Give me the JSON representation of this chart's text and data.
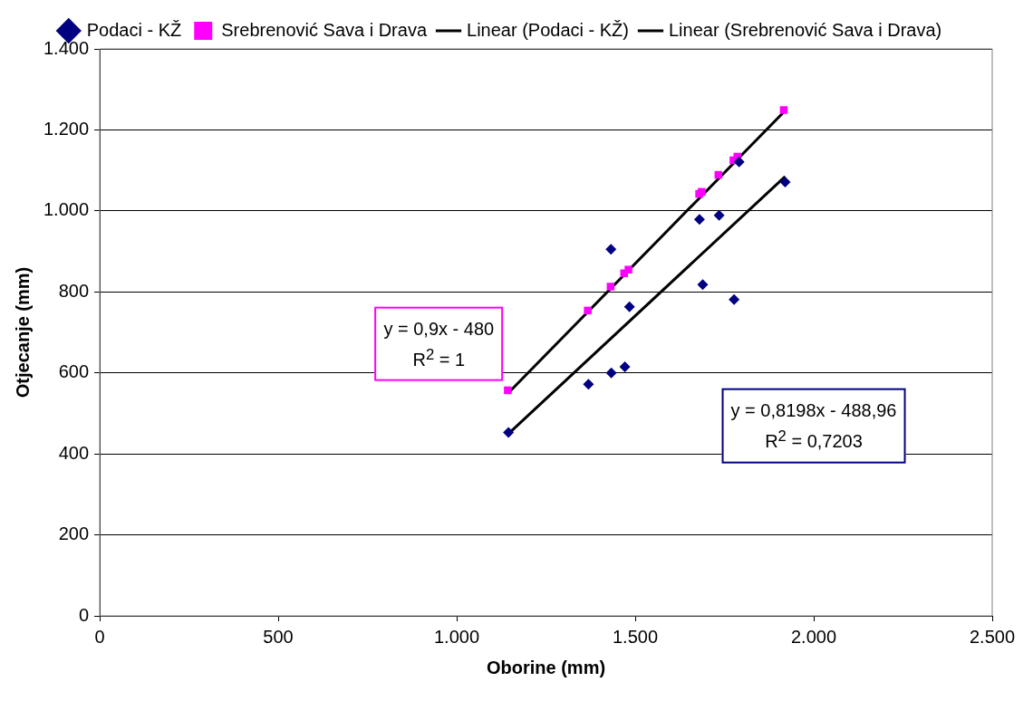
{
  "chart_data": {
    "type": "scatter",
    "xlabel": "Oborine (mm)",
    "ylabel": "Otjecanje (mm)",
    "xlim": [
      0,
      2500
    ],
    "xticks": [
      0,
      500,
      {
        "value": 1000,
        "label": "1.000"
      },
      {
        "value": 1500,
        "label": "1.500"
      },
      {
        "value": 2000,
        "label": "2.000"
      },
      {
        "value": 2500,
        "label": "2.500"
      }
    ],
    "ylim": [
      0,
      1400
    ],
    "yticks": [
      0,
      200,
      400,
      600,
      800,
      {
        "value": 1000,
        "label": "1.000"
      },
      {
        "value": 1200,
        "label": "1.200"
      },
      {
        "value": 1400,
        "label": "1.400"
      }
    ],
    "grid": "y",
    "legend": "top",
    "series": [
      {
        "name": "Podaci - KŽ",
        "color": "#000080",
        "marker": "diamond",
        "x": [
          1145,
          1369,
          1433,
          1471,
          1432,
          1484,
          1680,
          1689,
          1735,
          1777,
          1791,
          1920
        ],
        "values": [
          453,
          572,
          600,
          615,
          905,
          763,
          979,
          818,
          989,
          781,
          1121,
          1071
        ]
      },
      {
        "name": "Srebrenović Sava i Drava",
        "color": "#ff00ff",
        "marker": "square",
        "x": [
          1143,
          1367,
          1431,
          1469,
          1481,
          1679,
          1686,
          1733,
          1775,
          1786,
          1916
        ],
        "values": [
          557,
          754,
          813,
          846,
          855,
          1042,
          1047,
          1089,
          1125,
          1134,
          1249
        ]
      },
      {
        "name": "Linear (Podaci - KŽ)",
        "type": "line",
        "color": "#000000",
        "marker": "none",
        "x": [
          1145,
          1920
        ],
        "values": [
          450,
          1085
        ]
      },
      {
        "name": "Linear (Srebrenović Sava i Drava)",
        "type": "line",
        "color": "#000000",
        "marker": "none",
        "x": [
          1143,
          1916
        ],
        "values": [
          549,
          1244
        ]
      }
    ],
    "annotations": [
      "y = 0,8198x - 488,96\nR$^{2}$ = 0,7203",
      "y = 0,9x - 480\nR$^{2}$ = 1"
    ]
  }
}
